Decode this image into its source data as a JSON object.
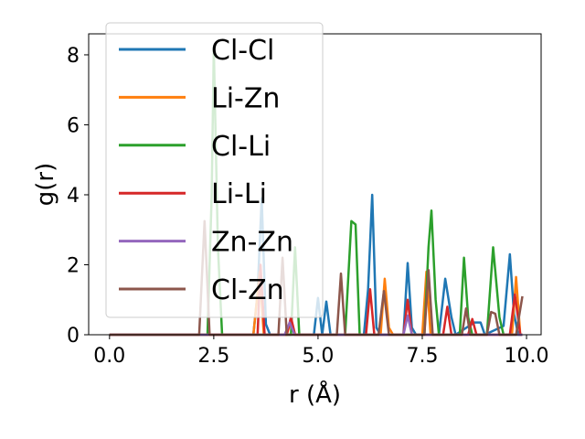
{
  "chart_data": {
    "type": "line",
    "xlabel": "r (Å)",
    "ylabel": "g(r)",
    "xlim": [
      -0.5,
      10.35
    ],
    "ylim": [
      0,
      8.6
    ],
    "xticks": [
      0.0,
      2.5,
      5.0,
      7.5,
      10.0
    ],
    "xtick_labels": [
      "0.0",
      "2.5",
      "5.0",
      "7.5",
      "10.0"
    ],
    "yticks": [
      0,
      2,
      4,
      6,
      8
    ],
    "ytick_labels": [
      "0",
      "2",
      "4",
      "6",
      "8"
    ],
    "grid": false,
    "legend_position": "top-left",
    "series": [
      {
        "name": "Cl-Cl",
        "color": "#1f77b4",
        "points": [
          [
            0,
            0
          ],
          [
            3.45,
            0
          ],
          [
            3.55,
            1.2
          ],
          [
            3.65,
            3.9
          ],
          [
            3.75,
            0.3
          ],
          [
            3.85,
            0
          ],
          [
            4.9,
            0
          ],
          [
            5.0,
            1.05
          ],
          [
            5.1,
            0
          ],
          [
            5.2,
            0.95
          ],
          [
            5.3,
            0
          ],
          [
            6.1,
            0
          ],
          [
            6.2,
            1.3
          ],
          [
            6.3,
            4.0
          ],
          [
            6.4,
            0.2
          ],
          [
            6.5,
            0
          ],
          [
            7.05,
            0
          ],
          [
            7.15,
            2.05
          ],
          [
            7.25,
            0.2
          ],
          [
            7.35,
            0
          ],
          [
            7.9,
            0
          ],
          [
            8.05,
            1.6
          ],
          [
            8.2,
            0.5
          ],
          [
            8.3,
            0
          ],
          [
            8.75,
            0.35
          ],
          [
            8.9,
            0.35
          ],
          [
            9.0,
            0
          ],
          [
            9.45,
            0.25
          ],
          [
            9.6,
            2.3
          ],
          [
            9.7,
            0.6
          ],
          [
            9.8,
            0
          ],
          [
            9.9,
            0
          ]
        ]
      },
      {
        "name": "Li-Zn",
        "color": "#ff7f0e",
        "points": [
          [
            0,
            0
          ],
          [
            3.45,
            0
          ],
          [
            3.6,
            1.8
          ],
          [
            3.7,
            0
          ],
          [
            4.25,
            0
          ],
          [
            4.35,
            0.4
          ],
          [
            4.45,
            0
          ],
          [
            6.5,
            0
          ],
          [
            6.6,
            1.6
          ],
          [
            6.7,
            0.2
          ],
          [
            6.8,
            0
          ],
          [
            7.5,
            0
          ],
          [
            7.6,
            1.8
          ],
          [
            7.7,
            0
          ],
          [
            9.65,
            0
          ],
          [
            9.75,
            1.65
          ],
          [
            9.85,
            0
          ],
          [
            9.9,
            0
          ]
        ]
      },
      {
        "name": "Cl-Li",
        "color": "#2ca02c",
        "points": [
          [
            0,
            0
          ],
          [
            2.35,
            0
          ],
          [
            2.45,
            4.0
          ],
          [
            2.5,
            8.2
          ],
          [
            2.6,
            2.5
          ],
          [
            2.7,
            0
          ],
          [
            4.35,
            0
          ],
          [
            4.45,
            2.5
          ],
          [
            4.55,
            0
          ],
          [
            5.65,
            0
          ],
          [
            5.8,
            3.25
          ],
          [
            5.9,
            3.15
          ],
          [
            6.0,
            0
          ],
          [
            7.55,
            0
          ],
          [
            7.65,
            2.5
          ],
          [
            7.72,
            3.55
          ],
          [
            7.82,
            1.0
          ],
          [
            7.9,
            0
          ],
          [
            8.4,
            0
          ],
          [
            8.5,
            2.2
          ],
          [
            8.6,
            0.5
          ],
          [
            8.7,
            0
          ],
          [
            9.05,
            0
          ],
          [
            9.2,
            2.5
          ],
          [
            9.35,
            0.5
          ],
          [
            9.45,
            0
          ],
          [
            9.9,
            0
          ]
        ]
      },
      {
        "name": "Li-Li",
        "color": "#d62728",
        "points": [
          [
            0,
            0
          ],
          [
            3.55,
            0
          ],
          [
            3.62,
            2.0
          ],
          [
            3.72,
            0
          ],
          [
            4.25,
            0
          ],
          [
            4.35,
            0.5
          ],
          [
            4.45,
            0
          ],
          [
            6.15,
            0
          ],
          [
            6.25,
            1.3
          ],
          [
            6.35,
            0
          ],
          [
            7.05,
            0
          ],
          [
            7.15,
            1.0
          ],
          [
            7.25,
            0
          ],
          [
            8.0,
            0
          ],
          [
            8.1,
            0.8
          ],
          [
            8.2,
            0
          ],
          [
            8.6,
            0
          ],
          [
            8.7,
            0.45
          ],
          [
            8.8,
            0
          ],
          [
            9.6,
            0
          ],
          [
            9.72,
            1.15
          ],
          [
            9.85,
            0
          ],
          [
            9.9,
            0
          ]
        ]
      },
      {
        "name": "Zn-Zn",
        "color": "#9467bd",
        "points": [
          [
            0,
            0
          ],
          [
            4.2,
            0
          ],
          [
            4.32,
            0.35
          ],
          [
            4.44,
            0
          ],
          [
            7.05,
            0
          ],
          [
            7.15,
            0.55
          ],
          [
            7.25,
            0
          ],
          [
            9.9,
            0
          ]
        ]
      },
      {
        "name": "Cl-Zn",
        "color": "#8c564b",
        "points": [
          [
            0,
            0
          ],
          [
            2.15,
            0
          ],
          [
            2.28,
            3.25
          ],
          [
            2.4,
            0
          ],
          [
            4.05,
            0
          ],
          [
            4.15,
            2.2
          ],
          [
            4.25,
            0
          ],
          [
            5.45,
            0
          ],
          [
            5.55,
            1.75
          ],
          [
            5.65,
            0
          ],
          [
            6.45,
            0
          ],
          [
            6.58,
            1.25
          ],
          [
            6.7,
            0
          ],
          [
            7.55,
            0
          ],
          [
            7.65,
            1.85
          ],
          [
            7.75,
            0
          ],
          [
            8.45,
            0
          ],
          [
            8.55,
            0.75
          ],
          [
            8.65,
            0
          ],
          [
            9.05,
            0
          ],
          [
            9.15,
            0.65
          ],
          [
            9.25,
            0.6
          ],
          [
            9.35,
            0
          ],
          [
            9.75,
            0
          ],
          [
            9.9,
            1.1
          ]
        ]
      }
    ]
  }
}
